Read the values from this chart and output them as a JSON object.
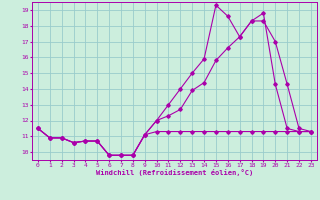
{
  "xlabel": "Windchill (Refroidissement éolien,°C)",
  "xlim": [
    -0.5,
    23.5
  ],
  "ylim": [
    9.5,
    19.5
  ],
  "xticks": [
    0,
    1,
    2,
    3,
    4,
    5,
    6,
    7,
    8,
    9,
    10,
    11,
    12,
    13,
    14,
    15,
    16,
    17,
    18,
    19,
    20,
    21,
    22,
    23
  ],
  "yticks": [
    10,
    11,
    12,
    13,
    14,
    15,
    16,
    17,
    18,
    19
  ],
  "bg_color": "#cceedd",
  "line_color": "#aa00aa",
  "grid_color": "#99cccc",
  "line1_x": [
    0,
    1,
    2,
    3,
    4,
    5,
    6,
    7,
    8,
    9,
    10,
    11,
    12,
    13,
    14,
    15,
    16,
    17,
    18,
    19,
    20,
    21,
    22,
    23
  ],
  "line1_y": [
    11.5,
    10.9,
    10.9,
    10.6,
    10.7,
    10.7,
    9.8,
    9.8,
    9.8,
    11.1,
    11.3,
    11.3,
    11.3,
    11.3,
    11.3,
    11.3,
    11.3,
    11.3,
    11.3,
    11.3,
    11.3,
    11.3,
    11.3,
    11.3
  ],
  "line2_x": [
    0,
    1,
    2,
    3,
    4,
    5,
    6,
    7,
    8,
    9,
    10,
    11,
    12,
    13,
    14,
    15,
    16,
    17,
    18,
    19,
    20,
    21,
    22,
    23
  ],
  "line2_y": [
    11.5,
    10.9,
    10.9,
    10.6,
    10.7,
    10.7,
    9.8,
    9.8,
    9.8,
    11.1,
    12.0,
    12.3,
    12.7,
    13.9,
    14.4,
    15.8,
    16.6,
    17.3,
    18.3,
    18.3,
    17.0,
    14.3,
    11.5,
    11.3
  ],
  "line3_x": [
    0,
    1,
    2,
    3,
    4,
    5,
    6,
    7,
    8,
    9,
    10,
    11,
    12,
    13,
    14,
    15,
    16,
    17,
    18,
    19,
    20,
    21,
    22,
    23
  ],
  "line3_y": [
    11.5,
    10.9,
    10.9,
    10.6,
    10.7,
    10.7,
    9.8,
    9.8,
    9.8,
    11.1,
    12.0,
    13.0,
    14.0,
    15.0,
    15.9,
    19.3,
    18.6,
    17.3,
    18.3,
    18.8,
    14.3,
    11.5,
    11.3,
    11.3
  ]
}
